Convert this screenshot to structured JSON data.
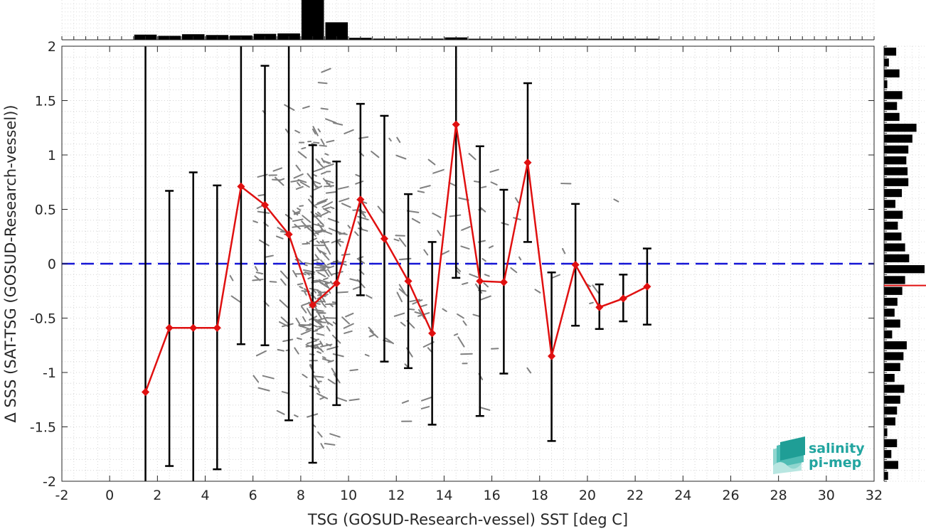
{
  "chart_data": {
    "type": "scatter",
    "xlabel": "TSG (GOSUD-Research-vessel) SST [deg C]",
    "ylabel": "Δ SSS (SAT-TSG (GOSUD-Research-vessel))",
    "xlim": [
      -2,
      32
    ],
    "ylim": [
      -2,
      2
    ],
    "x_ticks": [
      -2,
      0,
      2,
      4,
      6,
      8,
      10,
      12,
      14,
      16,
      18,
      20,
      22,
      24,
      26,
      28,
      30,
      32
    ],
    "y_ticks": [
      -2,
      -1.5,
      -1,
      -0.5,
      0,
      0.5,
      1,
      1.5,
      2
    ],
    "x_tick_labels": [
      "-2",
      "0",
      "2",
      "4",
      "6",
      "8",
      "10",
      "12",
      "14",
      "16",
      "18",
      "20",
      "22",
      "24",
      "26",
      "28",
      "30",
      "32"
    ],
    "y_tick_labels": [
      "-2",
      "-1.5",
      "-1",
      "-0.5",
      "0",
      "0.5",
      "1",
      "1.5",
      "2"
    ],
    "grid": true,
    "reference_line": {
      "y": 0,
      "style": "dashed",
      "color": "#1515d6"
    },
    "series": [
      {
        "kind": "binned-mean-with-std",
        "color": "#e01010",
        "x": [
          1.5,
          2.5,
          3.5,
          4.5,
          5.5,
          6.5,
          7.5,
          8.5,
          9.5,
          10.5,
          11.5,
          12.5,
          13.5,
          14.5,
          15.5,
          16.5,
          17.5,
          18.5,
          19.5,
          20.5,
          21.5,
          22.5
        ],
        "y": [
          -1.18,
          -0.59,
          -0.59,
          -0.59,
          0.71,
          0.54,
          0.27,
          -0.38,
          -0.18,
          0.59,
          0.23,
          -0.16,
          -0.64,
          1.28,
          -0.16,
          -0.17,
          0.93,
          -0.85,
          -0.01,
          -0.4,
          -0.32,
          -0.21
        ],
        "err_lo": [
          -2.0,
          -1.86,
          -2.0,
          -1.89,
          -0.74,
          -0.75,
          -1.44,
          -1.83,
          -1.3,
          -0.29,
          -0.9,
          -0.96,
          -1.48,
          -0.13,
          -1.4,
          -1.01,
          0.2,
          -1.63,
          -0.57,
          -0.6,
          -0.53,
          -0.56
        ],
        "err_hi": [
          2.0,
          0.67,
          0.84,
          0.72,
          2.0,
          1.82,
          2.0,
          1.09,
          0.94,
          1.47,
          1.36,
          0.64,
          0.2,
          2.0,
          1.08,
          0.68,
          1.66,
          -0.08,
          0.55,
          -0.19,
          -0.1,
          0.14
        ]
      }
    ],
    "top_histogram": {
      "bin_edges_start": 1,
      "bin_width": 1,
      "counts": [
        0.13,
        0.1,
        0.14,
        0.12,
        0.11,
        0.15,
        0.16,
        1.0,
        0.44,
        0.05,
        0.03,
        0.03,
        0.03,
        0.06,
        0.01,
        0.01,
        0.01,
        0.01,
        0.03,
        0.01,
        0.02,
        0.01
      ]
    },
    "right_histogram": {
      "bin_edges_start": -2,
      "bin_width": 0.1,
      "counts": [
        0.1,
        0.35,
        0.18,
        0.32,
        0.08,
        0.28,
        0.32,
        0.4,
        0.5,
        0.26,
        0.4,
        0.48,
        0.56,
        0.2,
        0.4,
        0.26,
        0.33,
        0.45,
        0.52,
        1.0,
        0.62,
        0.52,
        0.43,
        0.34,
        0.46,
        0.28,
        0.44,
        0.6,
        0.58,
        0.55,
        0.6,
        0.7,
        0.8,
        0.38,
        0.32,
        0.45,
        0.08,
        0.38,
        0.12,
        0.3
      ]
    },
    "right_histogram_marker_y": -0.2
  },
  "logo": {
    "line1": "salinity",
    "line2": "pi-mep",
    "color": "#22a5a0"
  }
}
